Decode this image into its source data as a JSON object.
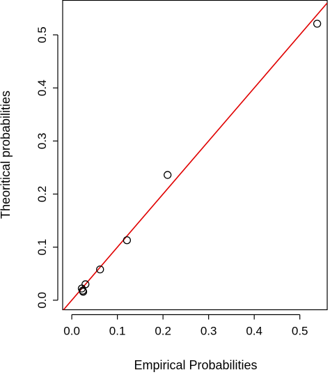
{
  "chart_data": {
    "type": "scatter",
    "title": "",
    "xlabel": "Empirical Probabilities",
    "ylabel": "Theoritical probabilities",
    "xlim": [
      -0.02,
      0.56
    ],
    "ylim": [
      -0.018,
      0.565
    ],
    "xticks": [
      "0.0",
      "0.1",
      "0.2",
      "0.3",
      "0.4",
      "0.5"
    ],
    "yticks": [
      "0.0",
      "0.1",
      "0.2",
      "0.3",
      "0.4",
      "0.5"
    ],
    "grid": false,
    "legend": "none",
    "points": [
      {
        "x": 0.022,
        "y": 0.022
      },
      {
        "x": 0.024,
        "y": 0.018
      },
      {
        "x": 0.025,
        "y": 0.016
      },
      {
        "x": 0.03,
        "y": 0.03
      },
      {
        "x": 0.062,
        "y": 0.058
      },
      {
        "x": 0.121,
        "y": 0.113
      },
      {
        "x": 0.21,
        "y": 0.236
      },
      {
        "x": 0.538,
        "y": 0.521
      }
    ],
    "reference_line": {
      "slope": 1,
      "intercept": 0,
      "color": "#e00000"
    },
    "marker_color": "#000000",
    "marker": "open-circle"
  }
}
